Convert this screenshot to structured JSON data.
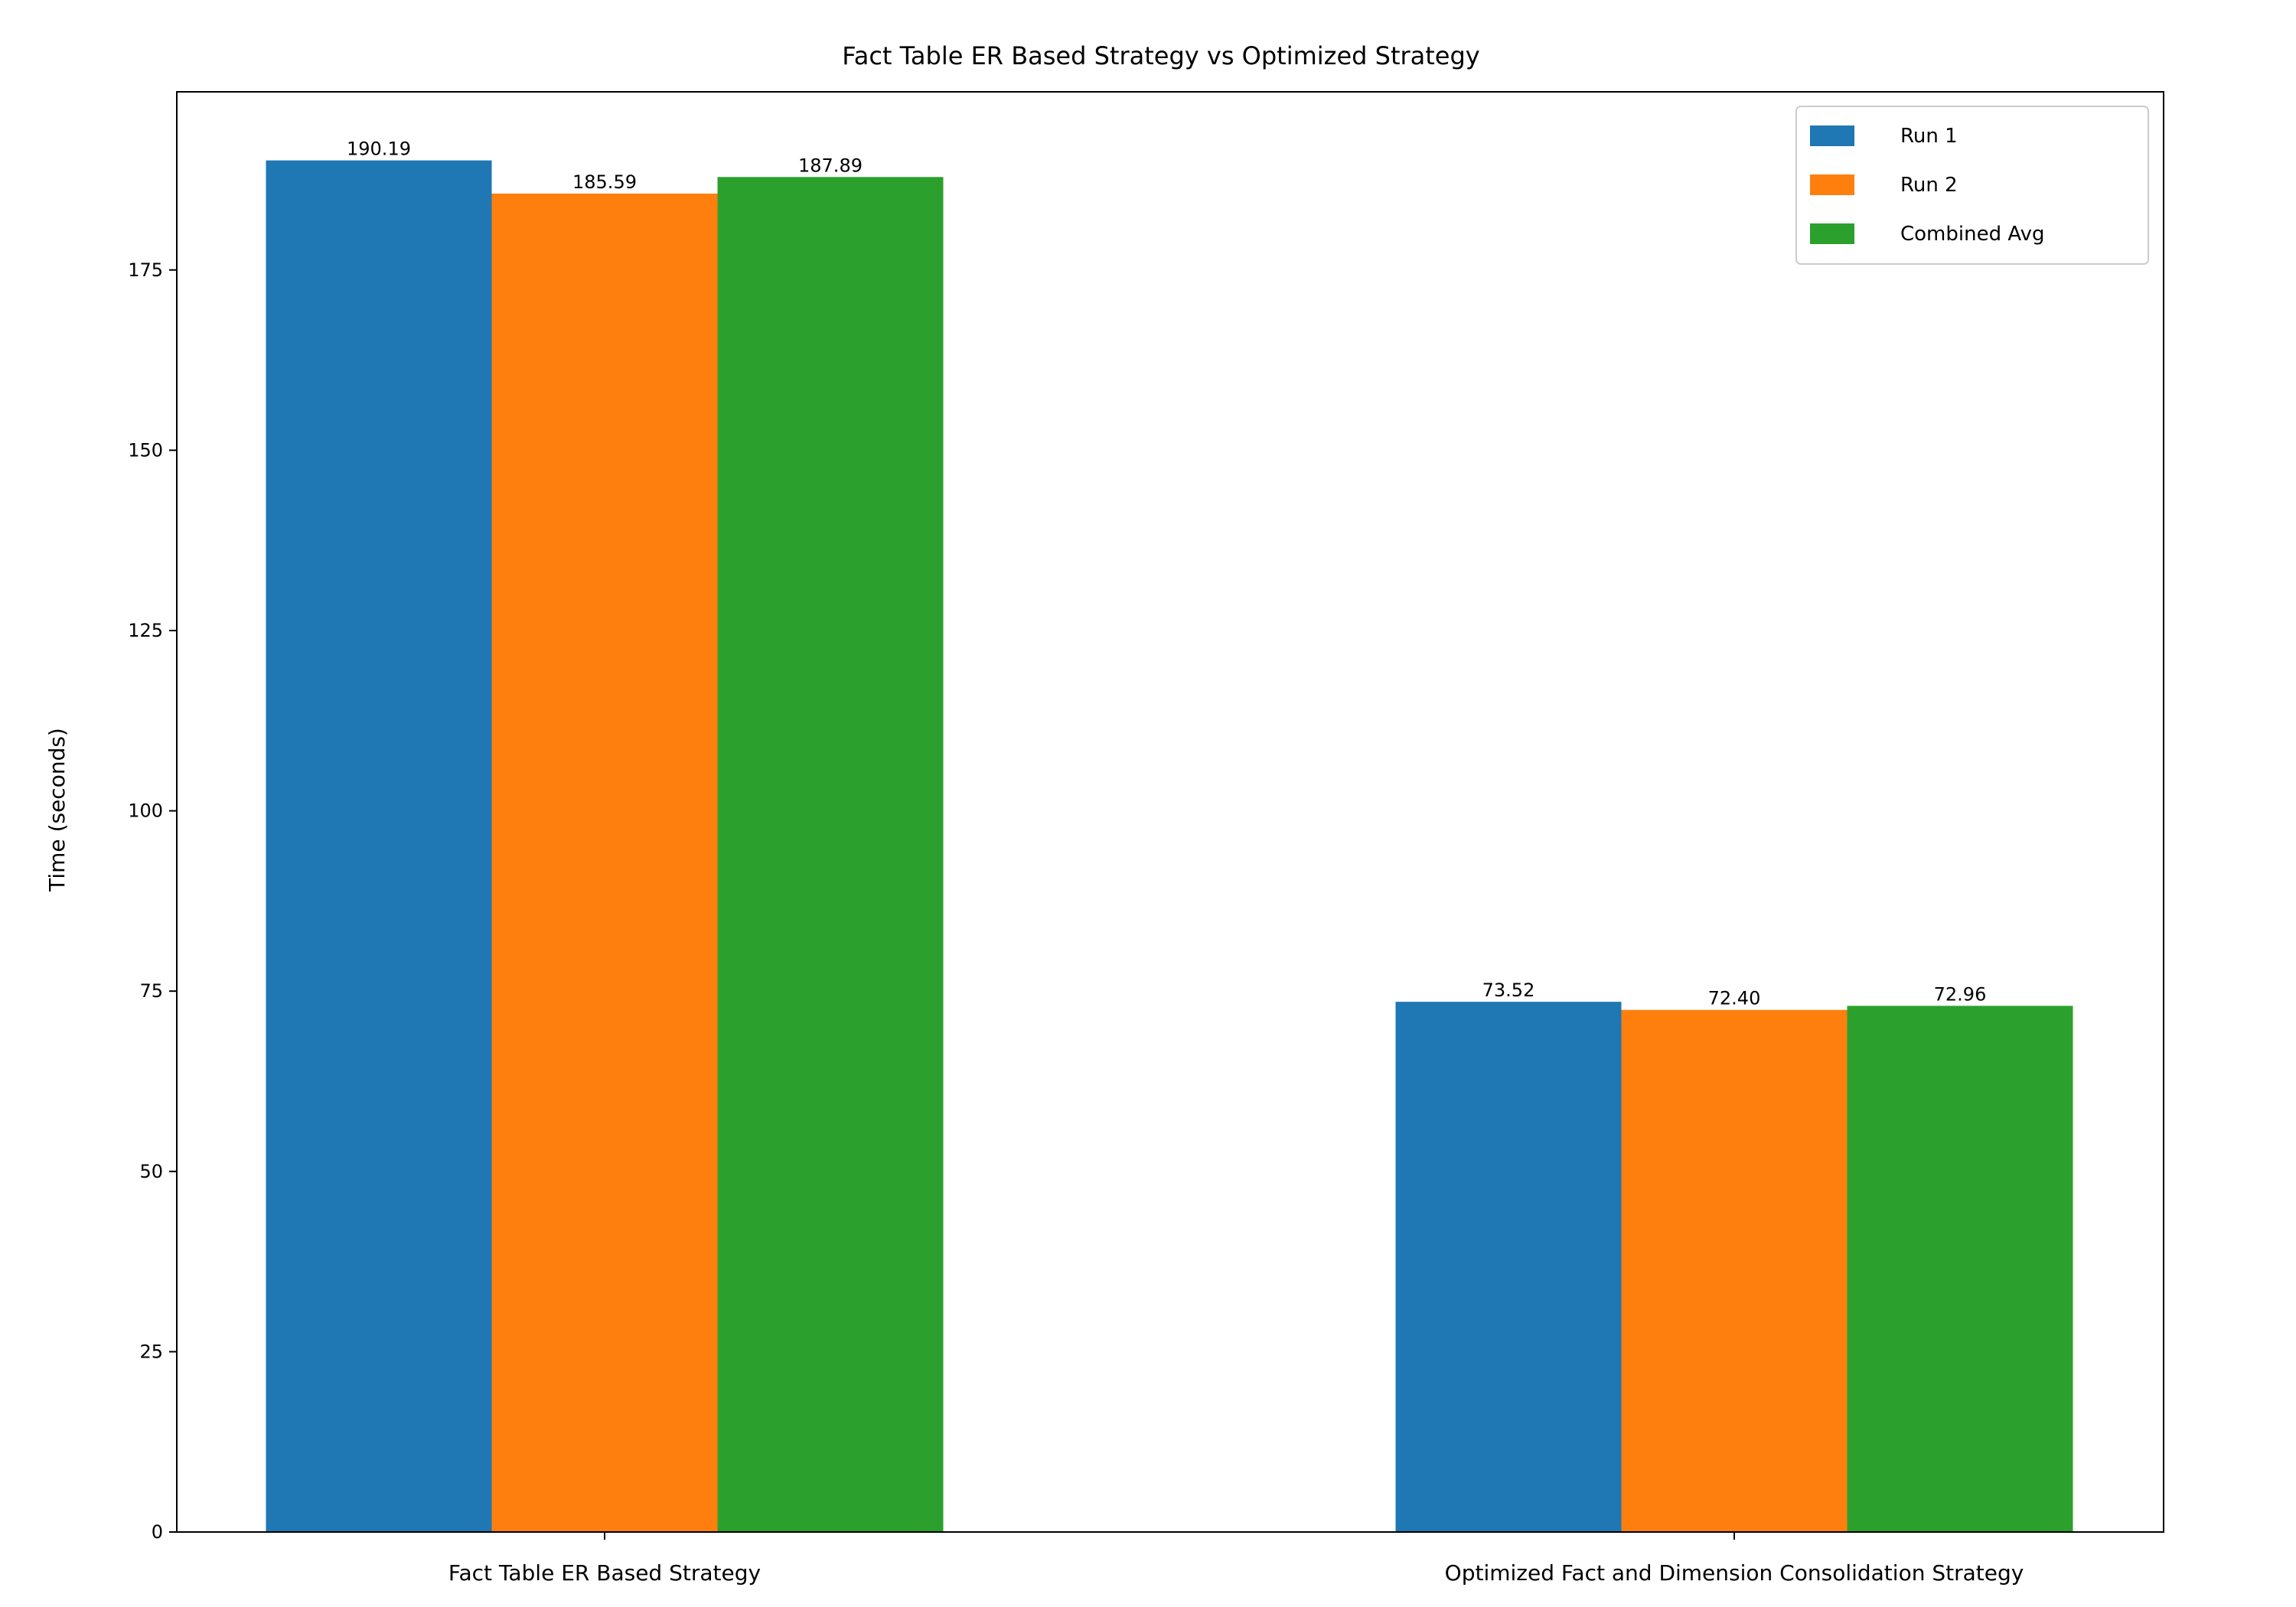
{
  "chart_data": {
    "type": "bar",
    "title": "Fact Table ER Based Strategy vs Optimized Strategy",
    "xlabel": "",
    "ylabel": "Time (seconds)",
    "categories": [
      "Fact Table ER Based Strategy",
      "Optimized Fact and Dimension Consolidation Strategy"
    ],
    "series": [
      {
        "name": "Run 1",
        "color": "#1f77b4",
        "values": [
          190.19,
          73.52
        ],
        "labels": [
          "190.19",
          "73.52"
        ]
      },
      {
        "name": "Run 2",
        "color": "#ff7f0e",
        "values": [
          185.59,
          72.4
        ],
        "labels": [
          "185.59",
          "72.40"
        ]
      },
      {
        "name": "Combined Avg",
        "color": "#2ca02c",
        "values": [
          187.89,
          72.96
        ],
        "labels": [
          "187.89",
          "72.96"
        ]
      }
    ],
    "ylim": [
      0,
      199.7
    ],
    "yticks": [
      0,
      25,
      50,
      75,
      100,
      125,
      150,
      175
    ],
    "grid": false,
    "legend": "top-right"
  }
}
